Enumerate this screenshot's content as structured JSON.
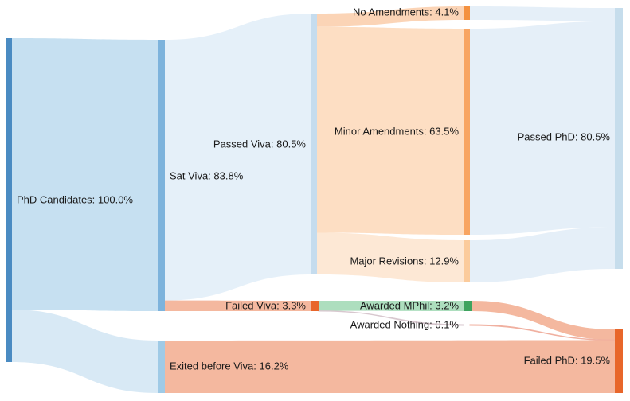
{
  "chart_data": {
    "type": "sankey",
    "title": "",
    "unit": "%",
    "nodes": [
      {
        "id": "phd",
        "label": "PhD Candidates: 100.0%",
        "value": 100.0,
        "color": "#4a8bc2"
      },
      {
        "id": "sat",
        "label": "Sat Viva: 83.8%",
        "value": 83.8,
        "color": "#7db3dc"
      },
      {
        "id": "exited",
        "label": "Exited before Viva: 16.2%",
        "value": 16.2,
        "color": "#9fcae6"
      },
      {
        "id": "passed_viva",
        "label": "Passed Viva: 80.5%",
        "value": 80.5,
        "color": "#c5dcee"
      },
      {
        "id": "failed_viva",
        "label": "Failed Viva: 3.3%",
        "value": 3.3,
        "color": "#e8662a"
      },
      {
        "id": "no_amend",
        "label": "No Amendments: 4.1%",
        "value": 4.1,
        "color": "#f4913f"
      },
      {
        "id": "minor",
        "label": "Minor Amendments: 63.5%",
        "value": 63.5,
        "color": "#f8a562"
      },
      {
        "id": "major",
        "label": "Major Revisions: 12.9%",
        "value": 12.9,
        "color": "#fbcb9c"
      },
      {
        "id": "mphil",
        "label": "Awarded MPhil: 3.2%",
        "value": 3.2,
        "color": "#3fa35f"
      },
      {
        "id": "nothing",
        "label": "Awarded Nothing: 0.1%",
        "value": 0.1,
        "color": "#e89a7f"
      },
      {
        "id": "passed_phd",
        "label": "Passed PhD: 80.5%",
        "value": 80.5,
        "color": "#c6ddec"
      },
      {
        "id": "failed_phd",
        "label": "Failed PhD: 19.5%",
        "value": 19.5,
        "color": "#e8662a"
      }
    ],
    "links": [
      {
        "source": "phd",
        "target": "sat",
        "value": 83.8,
        "color": "#c3def0"
      },
      {
        "source": "phd",
        "target": "exited",
        "value": 16.2,
        "color": "#d6e8f4"
      },
      {
        "source": "sat",
        "target": "passed_viva",
        "value": 80.5,
        "color": "#e4eff9"
      },
      {
        "source": "sat",
        "target": "failed_viva",
        "value": 3.3,
        "color": "#f3b49a"
      },
      {
        "source": "passed_viva",
        "target": "no_amend",
        "value": 4.1,
        "color": "#fbd2b2"
      },
      {
        "source": "passed_viva",
        "target": "minor",
        "value": 63.5,
        "color": "#fddcc0"
      },
      {
        "source": "passed_viva",
        "target": "major",
        "value": 12.9,
        "color": "#fde7d3"
      },
      {
        "source": "failed_viva",
        "target": "mphil",
        "value": 3.2,
        "color": "#a9dcbb"
      },
      {
        "source": "failed_viva",
        "target": "nothing",
        "value": 0.1,
        "color": "#d8c8cf"
      },
      {
        "source": "no_amend",
        "target": "passed_phd",
        "value": 4.1,
        "color": "#e4eef8"
      },
      {
        "source": "minor",
        "target": "passed_phd",
        "value": 63.5,
        "color": "#e4eef8"
      },
      {
        "source": "major",
        "target": "passed_phd",
        "value": 12.9,
        "color": "#e4eef8"
      },
      {
        "source": "mphil",
        "target": "failed_phd",
        "value": 3.2,
        "color": "#f3b49a"
      },
      {
        "source": "nothing",
        "target": "failed_phd",
        "value": 0.1,
        "color": "#f0b0a0"
      },
      {
        "source": "exited",
        "target": "failed_phd",
        "value": 16.2,
        "color": "#f3b49a"
      }
    ]
  }
}
